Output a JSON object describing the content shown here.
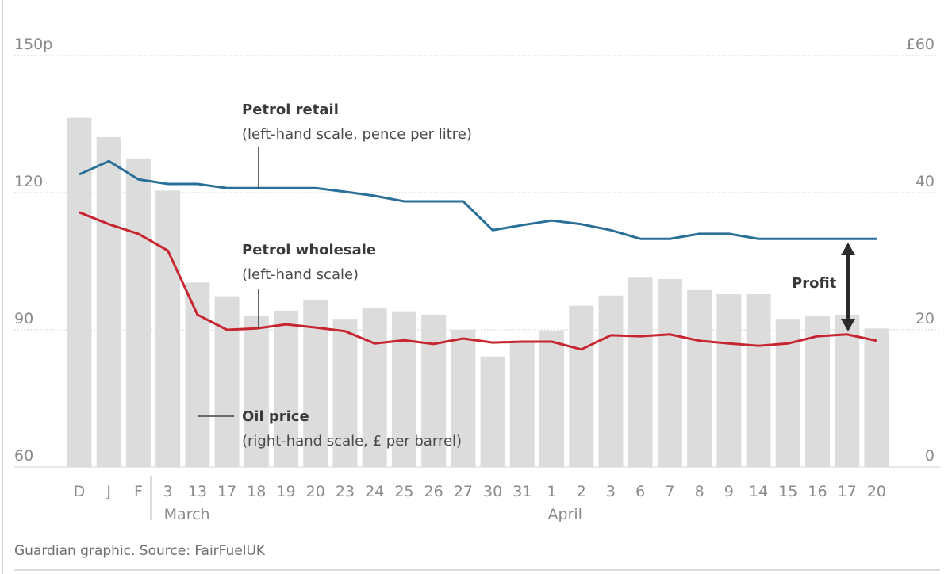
{
  "chart_data": {
    "type": "bar+line",
    "categories": [
      "D",
      "J",
      "F",
      "3",
      "13",
      "17",
      "18",
      "19",
      "20",
      "23",
      "24",
      "25",
      "26",
      "27",
      "30",
      "31",
      "1",
      "2",
      "3",
      "6",
      "7",
      "8",
      "9",
      "14",
      "15",
      "16",
      "17",
      "20"
    ],
    "month_labels": [
      {
        "label": "March",
        "at_index": 3
      },
      {
        "label": "April",
        "at_index": 16
      }
    ],
    "left_axis": {
      "ticks": [
        "150p",
        "120",
        "90",
        "60"
      ],
      "values": [
        150,
        120,
        90,
        60
      ],
      "ylim": [
        60,
        150
      ]
    },
    "right_axis": {
      "ticks": [
        "£60",
        "40",
        "20",
        "0"
      ],
      "values": [
        60,
        40,
        20,
        0
      ],
      "ylim": [
        0,
        60
      ]
    },
    "grid": true,
    "series": [
      {
        "name": "Oil price",
        "note": "(right-hand scale, £ per barrel)",
        "kind": "bar",
        "axis": "right",
        "color": "#dcdcdc",
        "values": [
          50.9,
          48.1,
          45.0,
          40.3,
          26.9,
          24.9,
          22.1,
          22.8,
          24.3,
          21.6,
          23.2,
          22.7,
          22.2,
          20.0,
          16.1,
          18.4,
          19.9,
          23.5,
          25.0,
          27.6,
          27.4,
          25.8,
          25.2,
          25.2,
          21.6,
          22.0,
          22.2,
          20.2
        ]
      },
      {
        "name": "Petrol retail",
        "note": "(left-hand scale, pence per litre)",
        "kind": "line",
        "axis": "left",
        "color": "#2a6f98",
        "values": [
          124.0,
          126.9,
          122.9,
          121.9,
          121.9,
          121.0,
          121.0,
          121.0,
          121.0,
          120.2,
          119.3,
          118.1,
          118.1,
          118.1,
          111.8,
          112.9,
          113.9,
          113.1,
          111.8,
          109.9,
          109.9,
          111.0,
          111.0,
          109.9,
          109.9,
          109.9,
          109.9,
          109.9
        ]
      },
      {
        "name": "Petrol wholesale",
        "note": "(left-hand scale)",
        "kind": "line",
        "axis": "left",
        "color": "#c7252f",
        "values": [
          115.7,
          113.1,
          111.0,
          107.3,
          93.3,
          90.0,
          90.3,
          91.2,
          90.5,
          89.7,
          87.0,
          87.7,
          86.9,
          88.1,
          87.2,
          87.4,
          87.4,
          85.7,
          88.8,
          88.6,
          89.0,
          87.6,
          87.0,
          86.5,
          87.0,
          88.6,
          89.0,
          87.6
        ]
      }
    ],
    "annotation": "Profit",
    "source": "Guardian graphic. Source: FairFuelUK"
  }
}
